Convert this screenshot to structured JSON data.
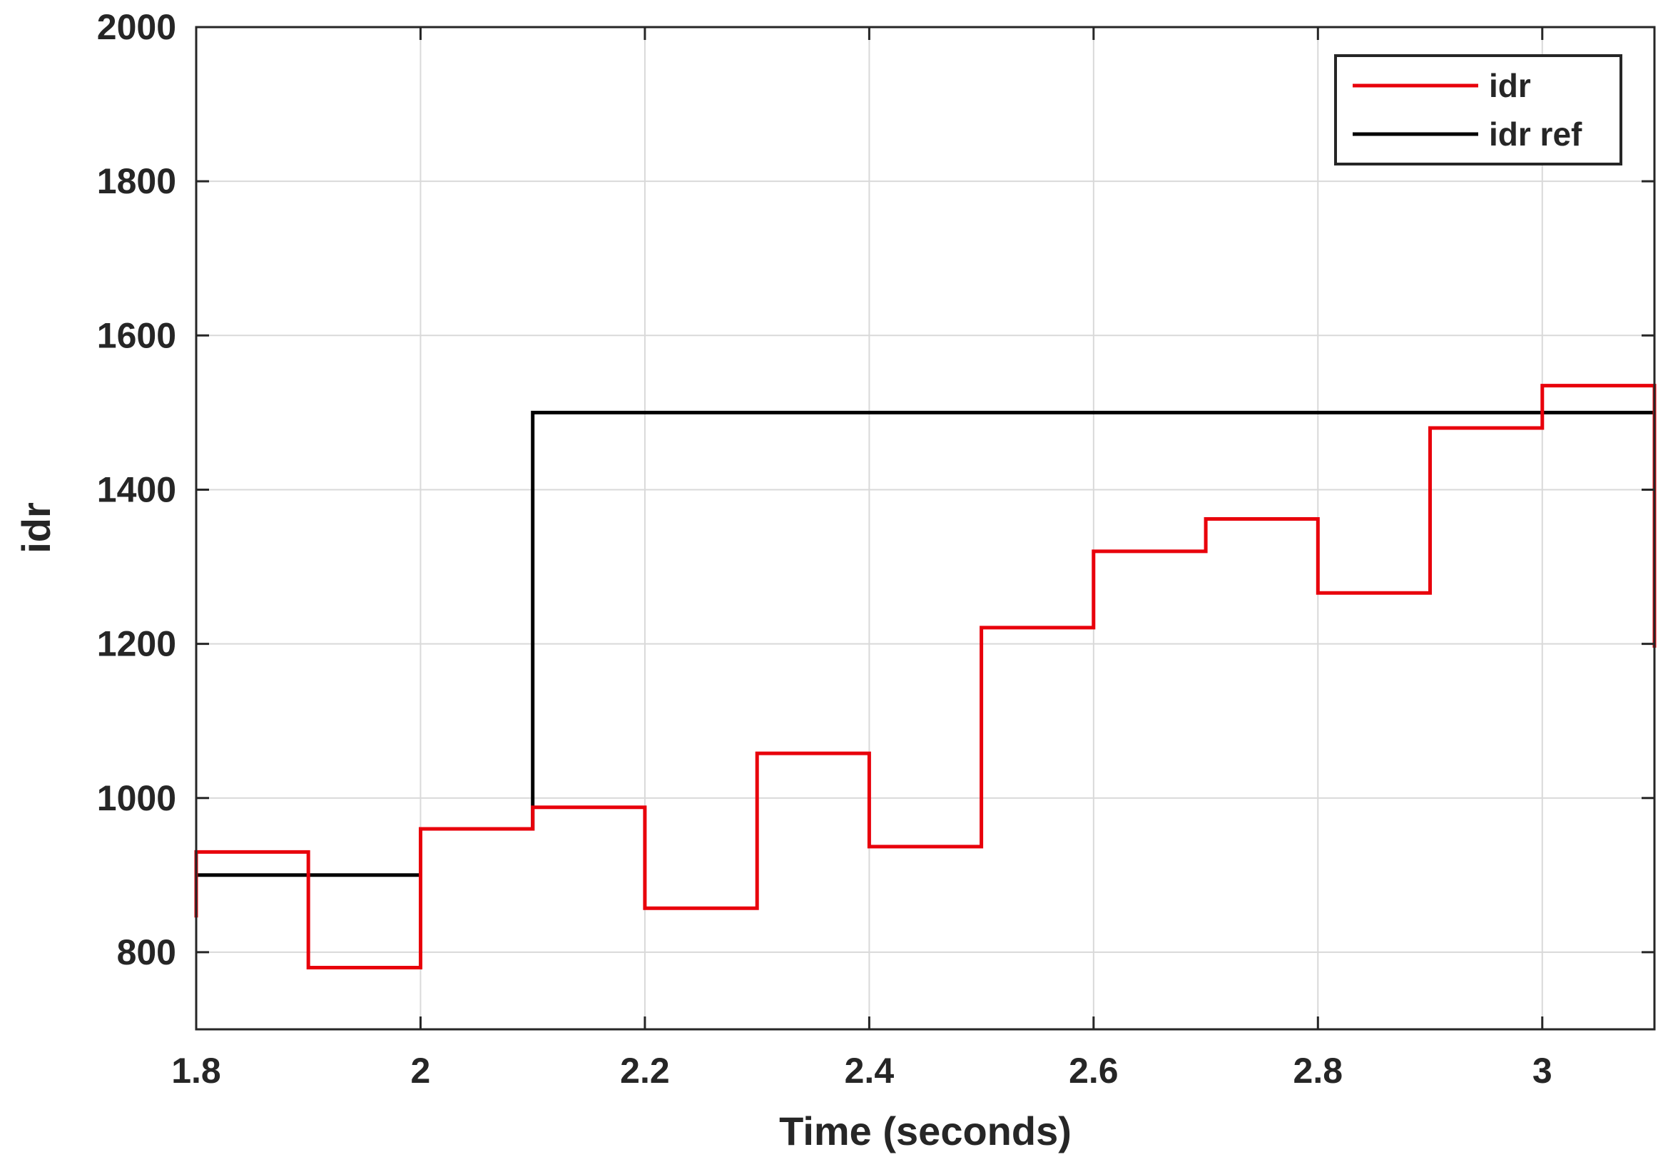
{
  "chart_data": {
    "type": "line",
    "title": "",
    "xlabel": "Time (seconds)",
    "ylabel": "idr",
    "xlim": [
      1.8,
      3.1
    ],
    "ylim": [
      700,
      2000
    ],
    "x_ticks": [
      1.8,
      2.0,
      2.2,
      2.4,
      2.6,
      2.8,
      3.0
    ],
    "x_tick_labels": [
      "1.8",
      "2",
      "2.2",
      "2.4",
      "2.6",
      "2.8",
      "3"
    ],
    "y_ticks": [
      800,
      1000,
      1200,
      1400,
      1600,
      1800,
      2000
    ],
    "y_tick_labels": [
      "800",
      "1000",
      "1200",
      "1400",
      "1600",
      "1800",
      "2000"
    ],
    "grid": true,
    "legend_position": "top-right",
    "series": [
      {
        "name": "idr",
        "color": "#e8000b",
        "step": true,
        "x": [
          1.8,
          1.8,
          1.9,
          2.0,
          2.1,
          2.2,
          2.3,
          2.4,
          2.5,
          2.6,
          2.7,
          2.8,
          2.9,
          3.0,
          3.1,
          3.1
        ],
        "y": [
          845,
          930,
          780,
          960,
          988,
          857,
          1058,
          937,
          1221,
          1320,
          1362,
          1266,
          1480,
          1535,
          1535,
          1195
        ]
      },
      {
        "name": "idr ref",
        "color": "#000000",
        "step": true,
        "x": [
          1.8,
          2.0,
          2.1,
          3.1
        ],
        "y": [
          900,
          960,
          1500,
          1500
        ]
      }
    ]
  }
}
